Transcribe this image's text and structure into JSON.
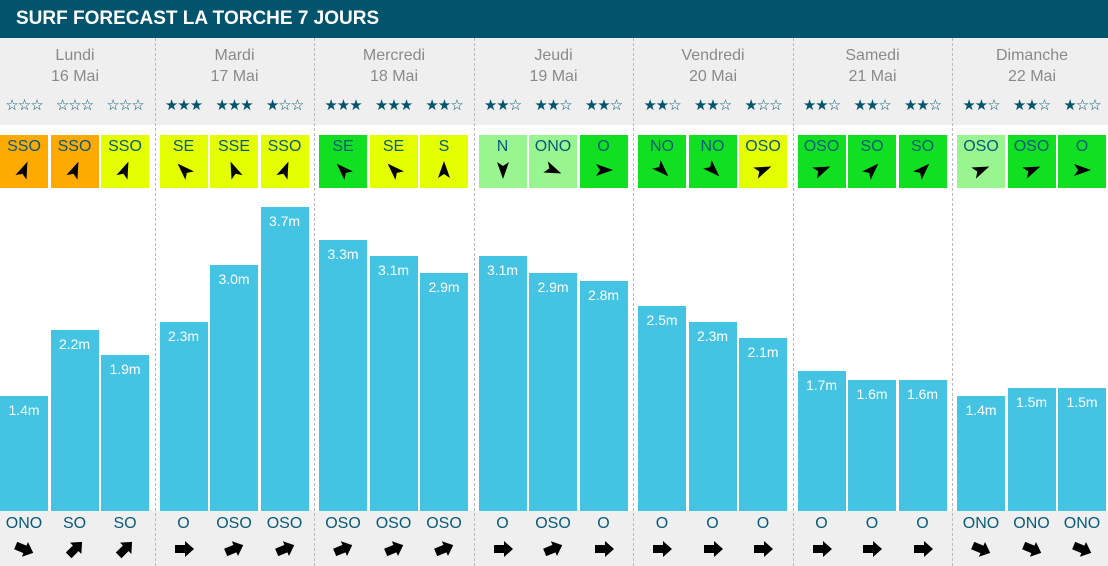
{
  "title": "SURF FORECAST LA TORCHE 7 JOURS",
  "colors": {
    "header": "#02546c",
    "bar": "#44c4e2",
    "orange": "#ffaa00",
    "yellow": "#e4ff00",
    "green": "#11e022",
    "lightgreen": "#99f58f"
  },
  "days": [
    {
      "name": "Lundi",
      "date": "16 Mai",
      "stars": [
        0,
        0,
        0
      ],
      "wind": [
        [
          "SSO",
          "orange"
        ],
        [
          "SSO",
          "orange"
        ],
        [
          "SSO",
          "yellow"
        ]
      ],
      "heights": [
        "1.4m",
        "2.2m",
        "1.9m"
      ],
      "values": [
        1.4,
        2.2,
        1.9
      ],
      "swell": [
        "ONO",
        "SO",
        "SO"
      ]
    },
    {
      "name": "Mardi",
      "date": "17 Mai",
      "stars": [
        3,
        3,
        1
      ],
      "wind": [
        [
          "SE",
          "yellow"
        ],
        [
          "SSE",
          "yellow"
        ],
        [
          "SSO",
          "yellow"
        ]
      ],
      "heights": [
        "2.3m",
        "3.0m",
        "3.7m"
      ],
      "values": [
        2.3,
        3.0,
        3.7
      ],
      "swell": [
        "O",
        "OSO",
        "OSO"
      ]
    },
    {
      "name": "Mercredi",
      "date": "18 Mai",
      "stars": [
        3,
        3,
        2
      ],
      "wind": [
        [
          "SE",
          "green"
        ],
        [
          "SE",
          "yellow"
        ],
        [
          "S",
          "yellow"
        ]
      ],
      "heights": [
        "3.3m",
        "3.1m",
        "2.9m"
      ],
      "values": [
        3.3,
        3.1,
        2.9
      ],
      "swell": [
        "OSO",
        "OSO",
        "OSO"
      ]
    },
    {
      "name": "Jeudi",
      "date": "19 Mai",
      "stars": [
        2,
        2,
        2
      ],
      "wind": [
        [
          "N",
          "lightgreen"
        ],
        [
          "ONO",
          "lightgreen"
        ],
        [
          "O",
          "green"
        ]
      ],
      "heights": [
        "3.1m",
        "2.9m",
        "2.8m"
      ],
      "values": [
        3.1,
        2.9,
        2.8
      ],
      "swell": [
        "O",
        "OSO",
        "O"
      ]
    },
    {
      "name": "Vendredi",
      "date": "20 Mai",
      "stars": [
        2,
        2,
        1
      ],
      "wind": [
        [
          "NO",
          "green"
        ],
        [
          "NO",
          "green"
        ],
        [
          "OSO",
          "yellow"
        ]
      ],
      "heights": [
        "2.5m",
        "2.3m",
        "2.1m"
      ],
      "values": [
        2.5,
        2.3,
        2.1
      ],
      "swell": [
        "O",
        "O",
        "O"
      ]
    },
    {
      "name": "Samedi",
      "date": "21 Mai",
      "stars": [
        2,
        2,
        2
      ],
      "wind": [
        [
          "OSO",
          "green"
        ],
        [
          "SO",
          "green"
        ],
        [
          "SO",
          "green"
        ]
      ],
      "heights": [
        "1.7m",
        "1.6m",
        "1.6m"
      ],
      "values": [
        1.7,
        1.6,
        1.6
      ],
      "swell": [
        "O",
        "O",
        "O"
      ]
    },
    {
      "name": "Dimanche",
      "date": "22 Mai",
      "stars": [
        2,
        2,
        1
      ],
      "wind": [
        [
          "OSO",
          "lightgreen"
        ],
        [
          "OSO",
          "green"
        ],
        [
          "O",
          "green"
        ]
      ],
      "heights": [
        "1.4m",
        "1.5m",
        "1.5m"
      ],
      "values": [
        1.4,
        1.5,
        1.5
      ],
      "swell": [
        "ONO",
        "ONO",
        "ONO"
      ]
    }
  ]
}
